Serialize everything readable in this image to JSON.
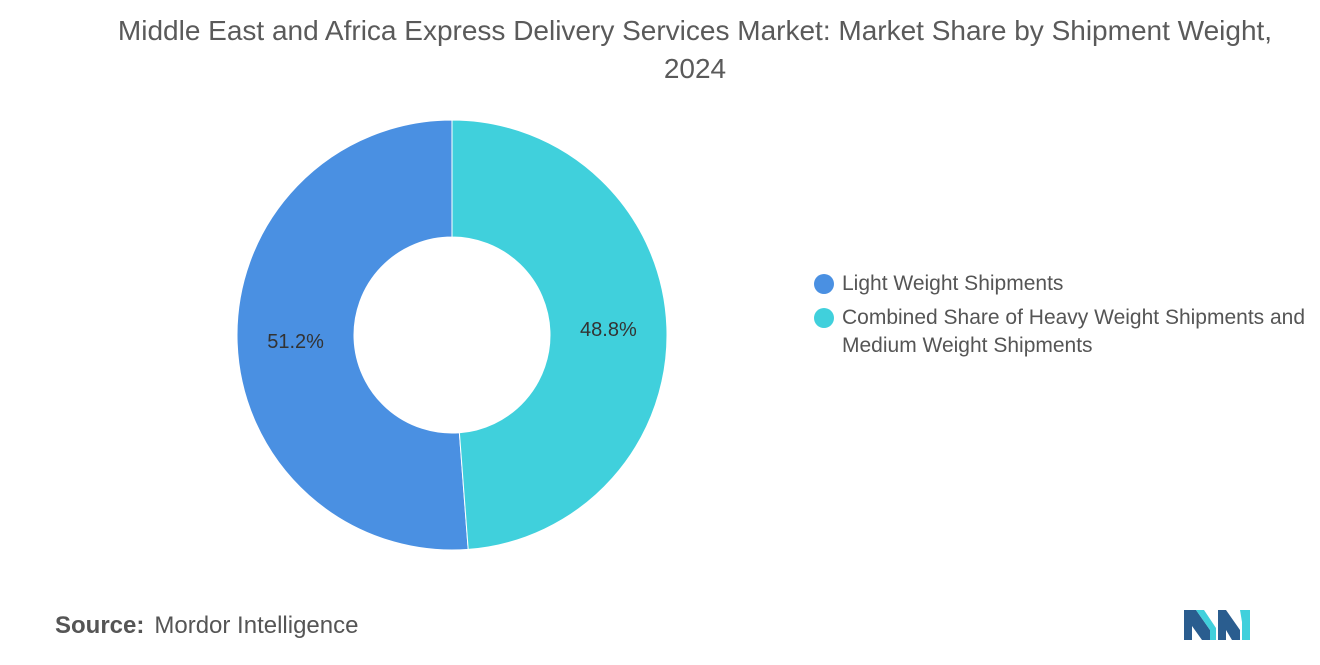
{
  "chart_data": {
    "type": "pie",
    "style": "donut",
    "title": "Middle East and Africa Express Delivery Services Market: Market Share by Shipment Weight, 2024",
    "categories": [
      "Light Weight Shipments",
      "Combined Share of Heavy Weight Shipments and Medium Weight Shipments"
    ],
    "values": [
      51.2,
      48.8
    ],
    "data_labels": [
      "51.2%",
      "48.8%"
    ],
    "colors": [
      "#4a90e2",
      "#40d0dc"
    ],
    "legend_position": "right"
  },
  "legend": {
    "items": [
      {
        "label": "Light Weight Shipments",
        "color": "#4a90e2"
      },
      {
        "label": "Combined Share of Heavy Weight Shipments and Medium Weight Shipments",
        "color": "#40d0dc"
      }
    ]
  },
  "source": {
    "label": "Source:",
    "value": "Mordor Intelligence"
  },
  "logo": {
    "icon": "mordor-intelligence-logo-icon",
    "colors": [
      "#2a5d8f",
      "#40d0dc"
    ]
  }
}
